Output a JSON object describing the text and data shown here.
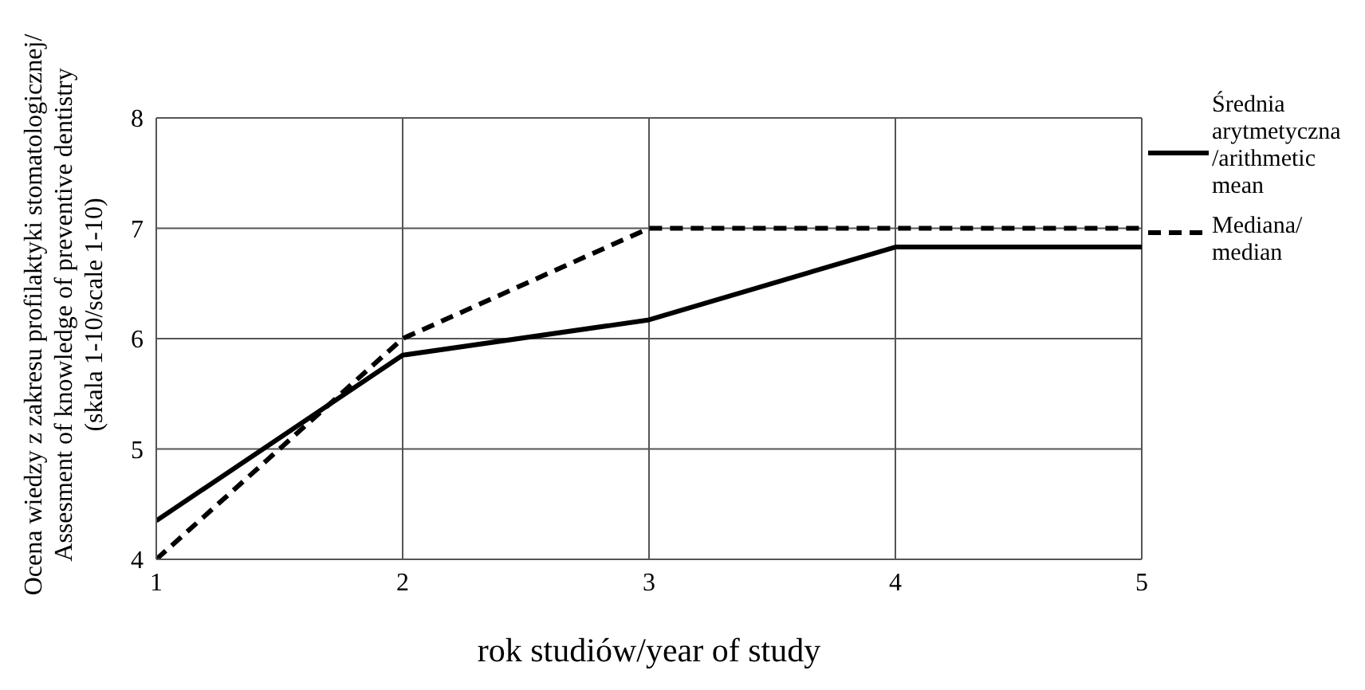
{
  "chart_data": {
    "type": "line",
    "xlabel": "rok studiów/year of study",
    "ylabel": "Ocena wiedzy z zakresu profilaktyki stomatologicznej/\nAssesment of knowledge of preventive dentistry\n(skala 1-10/scale 1-10)",
    "x": [
      1,
      2,
      3,
      4,
      5
    ],
    "xlim": [
      1,
      5
    ],
    "xticks": [
      1,
      2,
      3,
      4,
      5
    ],
    "ylim": [
      4,
      8
    ],
    "yticks": [
      4,
      5,
      6,
      7,
      8
    ],
    "grid": true,
    "legend": "right",
    "marker": "none",
    "series": [
      {
        "name": "Średnia arytmetyczna /arithmetic mean",
        "color": "#000000",
        "line_style": "solid",
        "values": [
          4.35,
          5.85,
          6.17,
          6.83,
          6.83
        ]
      },
      {
        "name": "Mediana/ median",
        "color": "#000000",
        "line_style": "dashed",
        "values": [
          4,
          6,
          7,
          7,
          7
        ]
      }
    ]
  }
}
